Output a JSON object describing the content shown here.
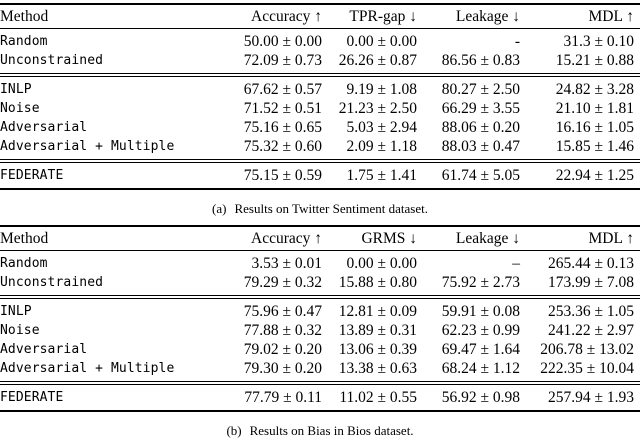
{
  "page": {
    "background_color": "#ffffff",
    "text_color": "#000000",
    "rule_color": "#000000"
  },
  "tables": [
    {
      "columns": [
        {
          "key": "method",
          "label": "Method"
        },
        {
          "key": "accuracy",
          "label": "Accuracy ↑"
        },
        {
          "key": "tpr-gap",
          "label": "TPR-gap ↓"
        },
        {
          "key": "leakage",
          "label": "Leakage ↓"
        },
        {
          "key": "mdl",
          "label": "MDL ↑"
        }
      ],
      "row_groups": [
        [
          {
            "method": "Random",
            "values": [
              "50.00 ± 0.00",
              "0.00 ± 0.00",
              "-",
              "31.3 ± 0.10"
            ]
          },
          {
            "method": "Unconstrained",
            "values": [
              "72.09 ± 0.73",
              "26.26 ± 0.87",
              "86.56 ± 0.83",
              "15.21 ± 0.88"
            ]
          }
        ],
        [
          {
            "method": "INLP",
            "values": [
              "67.62 ± 0.57",
              "9.19 ± 1.08",
              "80.27 ± 2.50",
              "24.82 ± 3.28"
            ]
          },
          {
            "method": "Noise",
            "values": [
              "71.52 ± 0.51",
              "21.23 ± 2.50",
              "66.29 ± 3.55",
              "21.10 ± 1.81"
            ]
          },
          {
            "method": "Adversarial",
            "values": [
              "75.16 ± 0.65",
              "5.03 ± 2.94",
              "88.06 ± 0.20",
              "16.16 ± 1.05"
            ]
          },
          {
            "method": "Adversarial + Multiple",
            "values": [
              "75.32 ± 0.60",
              "2.09 ± 1.18",
              "88.03 ± 0.47",
              "15.85 ± 1.46"
            ]
          }
        ],
        [
          {
            "method": "FEDERATE",
            "values": [
              "75.15 ± 0.59",
              "1.75 ± 1.41",
              "61.74 ± 5.05",
              "22.94 ± 1.25"
            ]
          }
        ]
      ],
      "caption_label": "(a)",
      "caption_text": "Results on Twitter Sentiment dataset."
    },
    {
      "columns": [
        {
          "key": "method",
          "label": "Method"
        },
        {
          "key": "accuracy",
          "label": "Accuracy ↑"
        },
        {
          "key": "grms",
          "label": "GRMS ↓"
        },
        {
          "key": "leakage",
          "label": "Leakage ↓"
        },
        {
          "key": "mdl",
          "label": "MDL ↑"
        }
      ],
      "row_groups": [
        [
          {
            "method": "Random",
            "values": [
              "3.53 ± 0.01",
              "0.00 ± 0.00",
              "–",
              "265.44 ± 0.13"
            ]
          },
          {
            "method": "Unconstrained",
            "values": [
              "79.29 ± 0.32",
              "15.88 ± 0.80",
              "75.92 ± 2.73",
              "173.99 ± 7.08"
            ]
          }
        ],
        [
          {
            "method": "INLP",
            "values": [
              "75.96 ± 0.47",
              "12.81 ± 0.09",
              "59.91 ± 0.08",
              "253.36 ± 1.05"
            ]
          },
          {
            "method": "Noise",
            "values": [
              "77.88 ± 0.32",
              "13.89 ± 0.31",
              "62.23 ± 0.99",
              "241.22 ± 2.97"
            ]
          },
          {
            "method": "Adversarial",
            "values": [
              "79.02 ± 0.20",
              "13.06 ± 0.39",
              "69.47 ± 1.64",
              "206.78 ± 13.02"
            ]
          },
          {
            "method": "Adversarial + Multiple",
            "values": [
              "79.30 ± 0.20",
              "13.38 ± 0.63",
              "68.24 ± 1.12",
              "222.35 ± 10.04"
            ]
          }
        ],
        [
          {
            "method": "FEDERATE",
            "values": [
              "77.79 ± 0.11",
              "11.02 ± 0.55",
              "56.92 ± 0.98",
              "257.94 ± 1.93"
            ]
          }
        ]
      ],
      "caption_label": "(b)",
      "caption_text": "Results on Bias in Bios dataset."
    }
  ]
}
